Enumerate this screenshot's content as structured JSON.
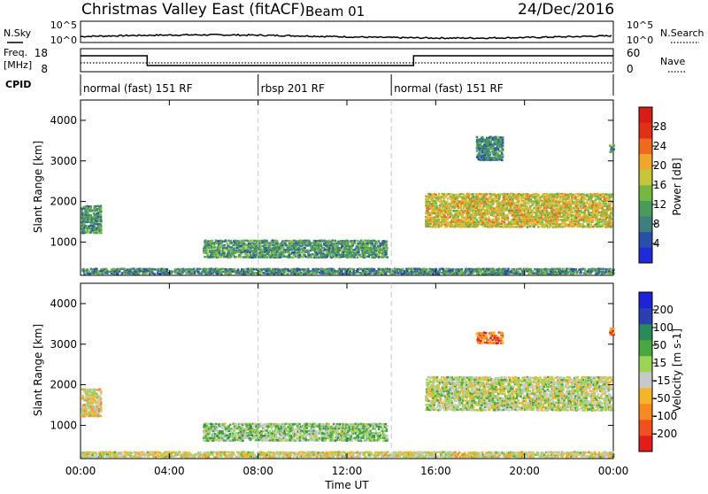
{
  "header": {
    "station": "Christmas Valley East (fitACF)",
    "beam": "Beam 01",
    "date": "24/Dec/2016"
  },
  "top_panel": {
    "nsky_label": "N.Sky",
    "nsearch_label": "N.Search",
    "left_ticks": [
      "10^5",
      "10^0"
    ],
    "right_ticks": [
      "10^5",
      "10^0"
    ]
  },
  "freq_panel": {
    "freq_label_1": "Freq.",
    "freq_label_2": "[MHz]",
    "nave_label": "Nave",
    "left_ticks": [
      "18",
      "8"
    ],
    "right_ticks": [
      "60",
      "0"
    ]
  },
  "cpid": {
    "label": "CPID",
    "modes": [
      {
        "label": "normal (fast) 151 RF",
        "start_h": 0,
        "end_h": 8
      },
      {
        "label": "rbsp 201 RF",
        "start_h": 8,
        "end_h": 14
      },
      {
        "label": "normal (fast) 151 RF",
        "start_h": 14,
        "end_h": 24
      }
    ]
  },
  "chart_data": [
    {
      "type": "heatmap",
      "name": "power",
      "ylabel": "Slant Range [km]",
      "yticks": [
        "4000",
        "3000",
        "2000",
        "1000"
      ],
      "ylim": [
        180,
        4500
      ],
      "xlim": [
        0,
        24
      ],
      "colorbar": {
        "label": "Power [dB]",
        "ticks": [
          "28",
          "24",
          "20",
          "16",
          "12",
          "8",
          "4"
        ],
        "range": [
          0,
          30
        ],
        "colors": [
          "#1e2bd6",
          "#2a4fa8",
          "#3c7f7c",
          "#4a9a5a",
          "#74b843",
          "#c6c63c",
          "#f0a82c",
          "#ec6b1f",
          "#e03018",
          "#d71e16"
        ]
      },
      "echo_regions": [
        {
          "t0": 0.0,
          "t1": 24.0,
          "r0": 200,
          "r1": 350,
          "level": 9
        },
        {
          "t0": 0.0,
          "t1": 0.9,
          "r0": 1200,
          "r1": 1900,
          "level": 10
        },
        {
          "t0": 5.5,
          "t1": 13.8,
          "r0": 600,
          "r1": 1050,
          "level": 10
        },
        {
          "t0": 15.5,
          "t1": 23.9,
          "r0": 1350,
          "r1": 2200,
          "level": 17
        },
        {
          "t0": 17.8,
          "t1": 19.0,
          "r0": 3000,
          "r1": 3600,
          "level": 8
        },
        {
          "t0": 23.8,
          "t1": 24.0,
          "r0": 3200,
          "r1": 3400,
          "level": 10
        }
      ]
    },
    {
      "type": "heatmap",
      "name": "velocity",
      "ylabel": "Slant Range [km]",
      "yticks": [
        "4000",
        "3000",
        "2000",
        "1000"
      ],
      "ylim": [
        180,
        4500
      ],
      "xlim": [
        0,
        24
      ],
      "xticks": [
        "00:00",
        "04:00",
        "08:00",
        "12:00",
        "16:00",
        "20:00",
        "00:00"
      ],
      "xlabel": "Time UT",
      "colorbar": {
        "label": "Velocity [m s-1]",
        "ticks": [
          "200",
          "100",
          "50",
          "15",
          "-15",
          "-50",
          "-100",
          "-200"
        ],
        "range": [
          -250,
          250
        ],
        "colors": [
          "#e21b1b",
          "#f0501e",
          "#f58a22",
          "#f5b52a",
          "#c8c8c8",
          "#9ad653",
          "#4aa640",
          "#2a8a58",
          "#2c3fb0",
          "#1d22d6"
        ]
      },
      "echo_regions": [
        {
          "t0": 0.0,
          "t1": 24.0,
          "r0": 200,
          "r1": 350,
          "level": -30
        },
        {
          "t0": 0.0,
          "t1": 0.9,
          "r0": 1200,
          "r1": 1900,
          "level": -40
        },
        {
          "t0": 5.5,
          "t1": 13.8,
          "r0": 600,
          "r1": 1050,
          "level": 30
        },
        {
          "t0": 15.5,
          "t1": 23.9,
          "r0": 1350,
          "r1": 2200,
          "level": 0
        },
        {
          "t0": 17.8,
          "t1": 19.0,
          "r0": 3000,
          "r1": 3300,
          "level": -150
        },
        {
          "t0": 23.8,
          "t1": 24.0,
          "r0": 3200,
          "r1": 3400,
          "level": -150
        }
      ]
    }
  ]
}
